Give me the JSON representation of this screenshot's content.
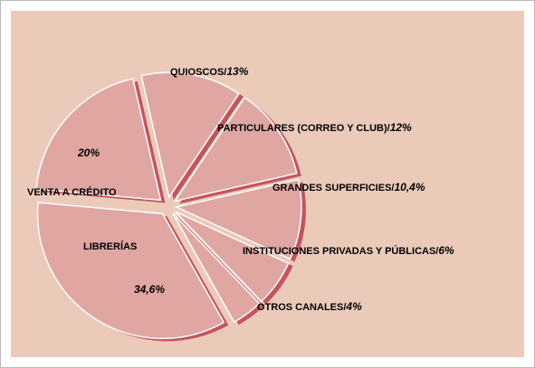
{
  "chart_data": {
    "type": "pie",
    "categories": [
      "LIBRERÍAS",
      "VENTA A CRÉDITO",
      "QUIOSCOS/",
      "PARTICULARES (CORREO Y CLUB)/",
      "GRANDES SUPERFICIES/",
      "INSTITUCIONES PRIVADAS Y PÚBLICAS/",
      "OTROS CANALES/"
    ],
    "values": [
      34.6,
      20,
      13,
      12,
      10.4,
      6,
      4
    ],
    "value_labels": [
      "34,6%",
      "20%",
      "13%",
      "12%",
      "10,4%",
      "6%",
      "4%"
    ],
    "color": "#e0a6a2",
    "shadow_color": "#c4545f"
  }
}
